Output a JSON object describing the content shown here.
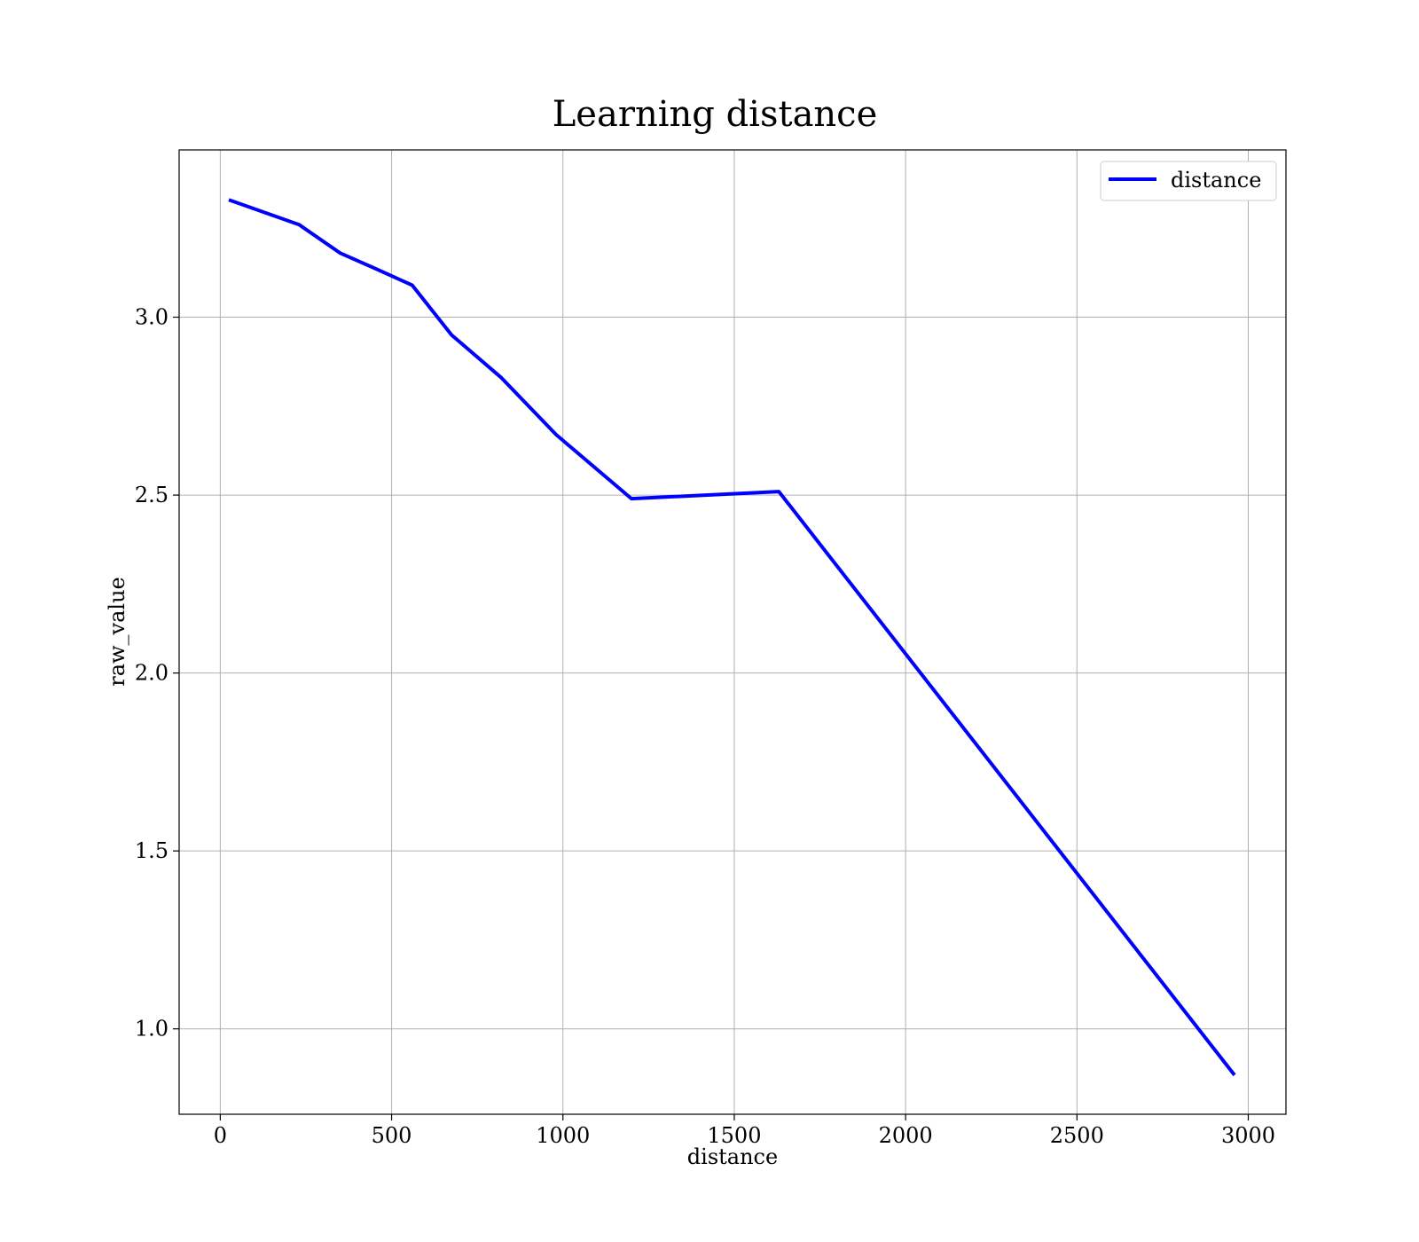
{
  "chart_data": {
    "type": "line",
    "title": "Learning distance",
    "xlabel": "distance",
    "ylabel": "raw_value",
    "xlim": [
      -120,
      3110
    ],
    "ylim": [
      0.76,
      3.47
    ],
    "xticks": [
      0,
      500,
      1000,
      1500,
      2000,
      2500,
      3000
    ],
    "xtick_labels": [
      "0",
      "500",
      "1000",
      "1500",
      "2000",
      "2500",
      "3000"
    ],
    "yticks": [
      1.0,
      1.5,
      2.0,
      2.5,
      3.0
    ],
    "ytick_labels": [
      "1.0",
      "1.5",
      "2.0",
      "2.5",
      "3.0"
    ],
    "grid": true,
    "legend": "upper right",
    "series": [
      {
        "name": "distance",
        "color": "#0000ff",
        "x": [
          25,
          230,
          350,
          445,
          560,
          675,
          820,
          980,
          1200,
          1630,
          2960
        ],
        "y": [
          3.33,
          3.26,
          3.18,
          3.14,
          3.09,
          2.95,
          2.83,
          2.67,
          2.49,
          2.51,
          0.87
        ]
      }
    ]
  }
}
